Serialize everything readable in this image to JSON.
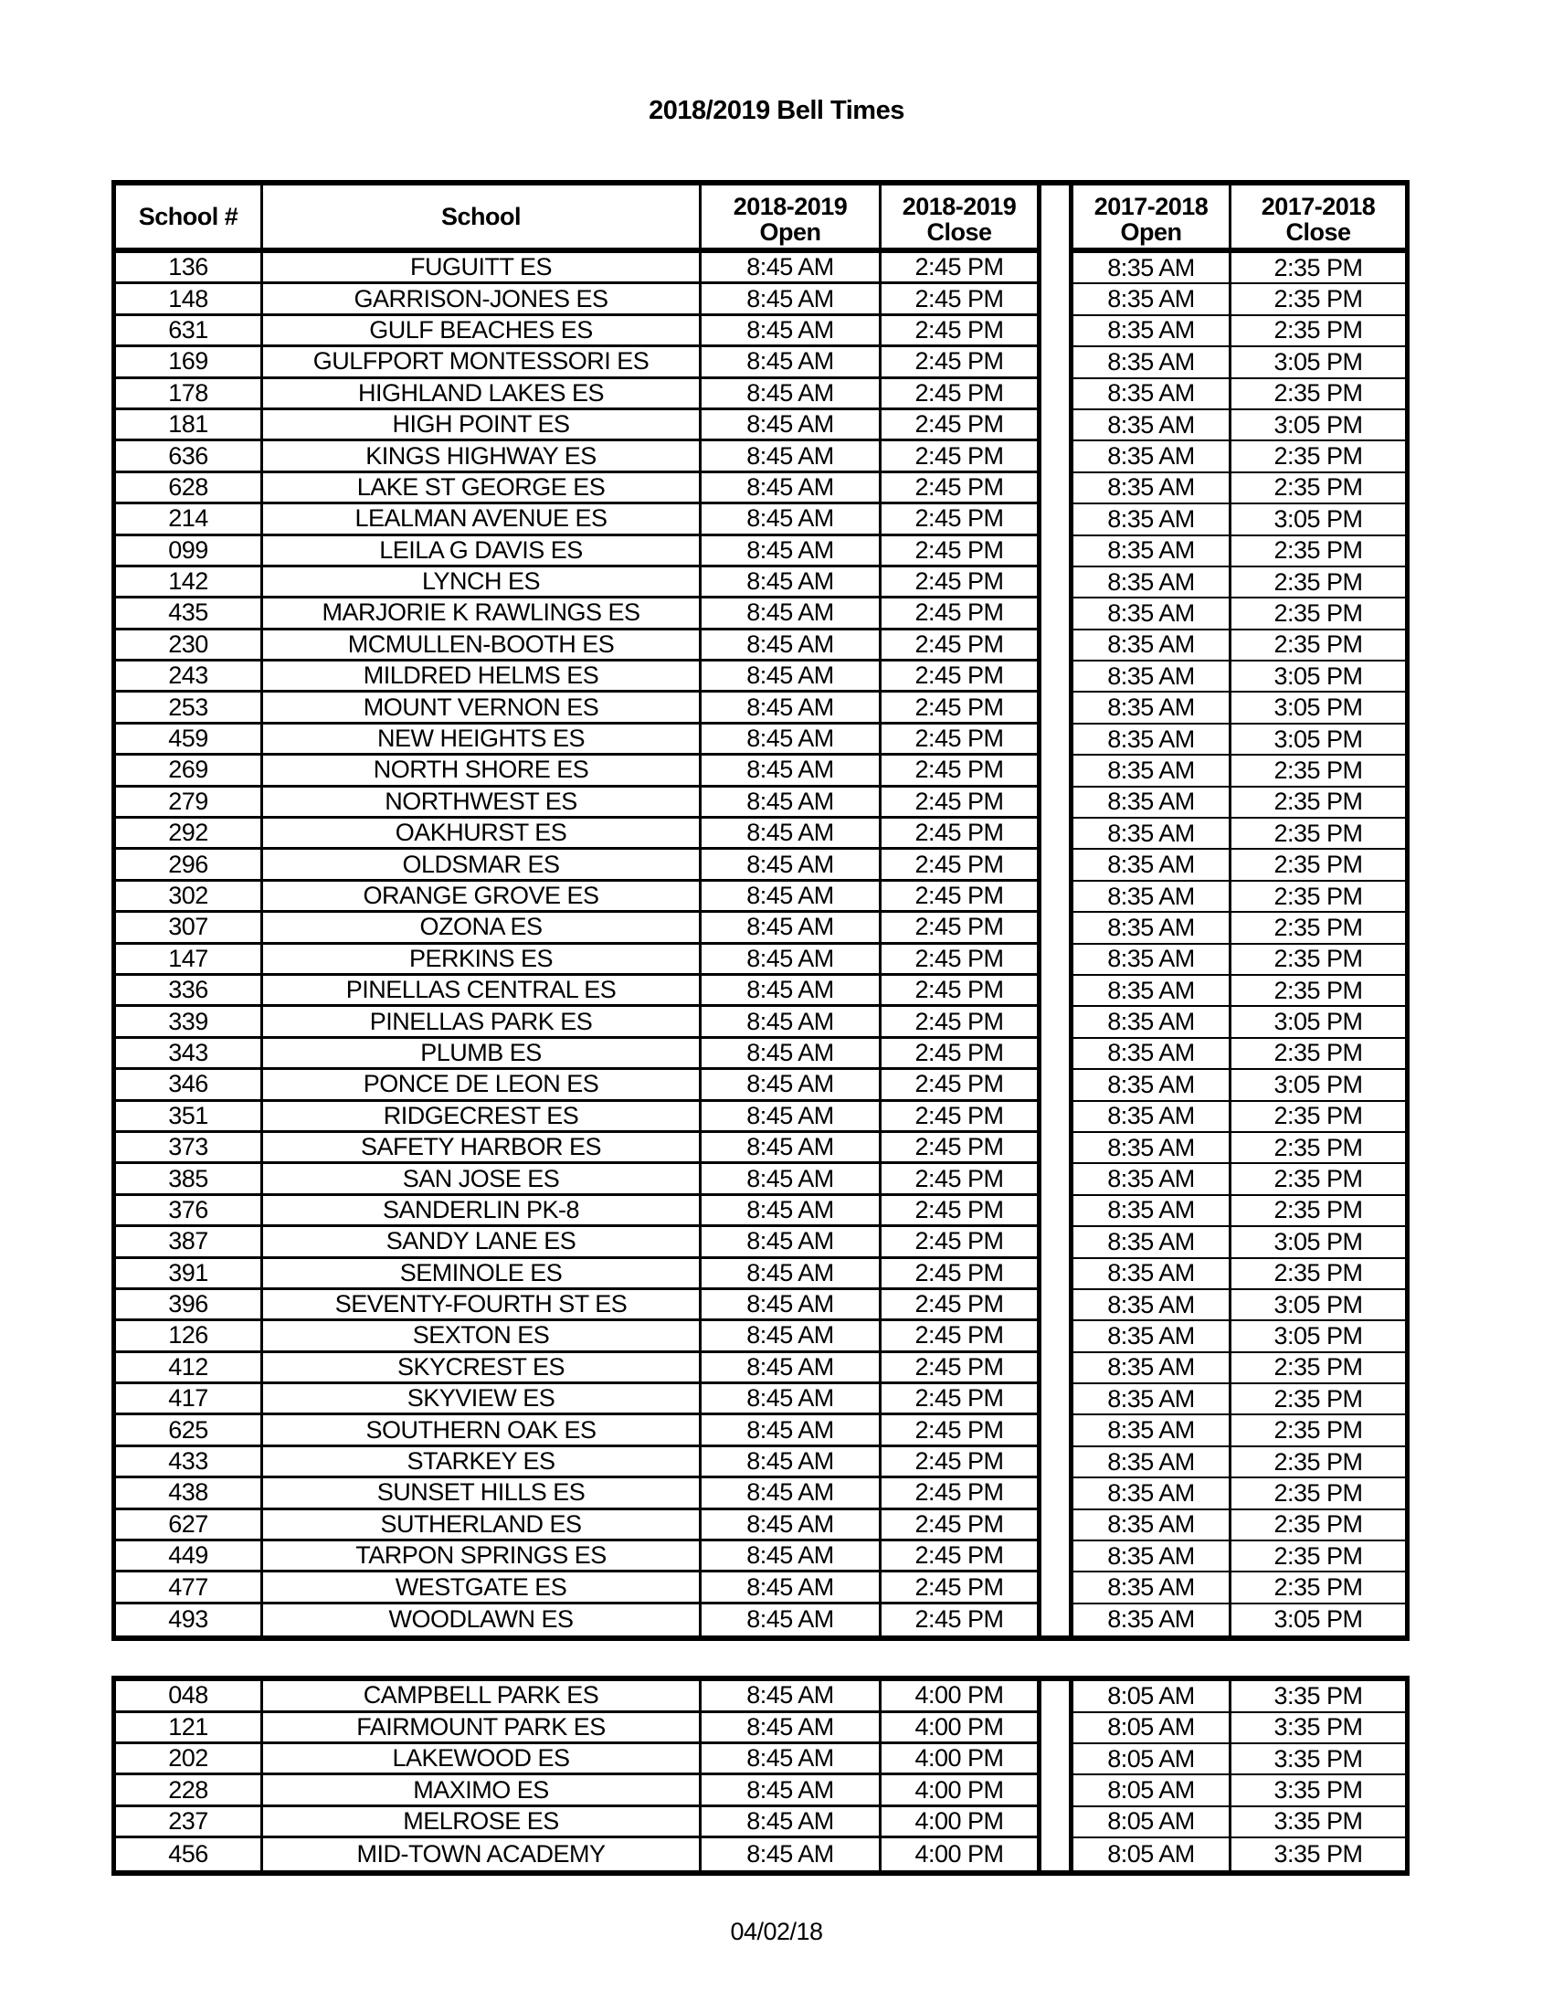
{
  "title": "2018/2019 Bell Times",
  "footer_date": "04/02/18",
  "table_header": {
    "school_number": "School #",
    "school": "School",
    "columns": [
      {
        "year": "2018-2019",
        "label": "Open"
      },
      {
        "year": "2018-2019",
        "label": "Close"
      },
      {
        "year": "2017-2018",
        "label": "Open"
      },
      {
        "year": "2017-2018",
        "label": "Close"
      }
    ]
  },
  "tables": [
    {
      "rows": [
        [
          "136",
          "FUGUITT ES",
          "8:45 AM",
          "2:45 PM",
          "8:35 AM",
          "2:35 PM"
        ],
        [
          "148",
          "GARRISON-JONES ES",
          "8:45 AM",
          "2:45 PM",
          "8:35 AM",
          "2:35 PM"
        ],
        [
          "631",
          "GULF BEACHES ES",
          "8:45 AM",
          "2:45 PM",
          "8:35 AM",
          "2:35 PM"
        ],
        [
          "169",
          "GULFPORT MONTESSORI ES",
          "8:45 AM",
          "2:45 PM",
          "8:35 AM",
          "3:05 PM"
        ],
        [
          "178",
          "HIGHLAND LAKES ES",
          "8:45 AM",
          "2:45 PM",
          "8:35 AM",
          "2:35 PM"
        ],
        [
          "181",
          "HIGH POINT ES",
          "8:45 AM",
          "2:45 PM",
          "8:35 AM",
          "3:05 PM"
        ],
        [
          "636",
          "KINGS HIGHWAY ES",
          "8:45 AM",
          "2:45 PM",
          "8:35 AM",
          "2:35 PM"
        ],
        [
          "628",
          "LAKE ST GEORGE ES",
          "8:45 AM",
          "2:45 PM",
          "8:35 AM",
          "2:35 PM"
        ],
        [
          "214",
          "LEALMAN AVENUE ES",
          "8:45 AM",
          "2:45 PM",
          "8:35 AM",
          "3:05 PM"
        ],
        [
          "099",
          "LEILA G DAVIS ES",
          "8:45 AM",
          "2:45 PM",
          "8:35 AM",
          "2:35 PM"
        ],
        [
          "142",
          "LYNCH ES",
          "8:45 AM",
          "2:45 PM",
          "8:35 AM",
          "2:35 PM"
        ],
        [
          "435",
          "MARJORIE K RAWLINGS ES",
          "8:45 AM",
          "2:45 PM",
          "8:35 AM",
          "2:35 PM"
        ],
        [
          "230",
          "MCMULLEN-BOOTH ES",
          "8:45 AM",
          "2:45 PM",
          "8:35 AM",
          "2:35 PM"
        ],
        [
          "243",
          "MILDRED HELMS ES",
          "8:45 AM",
          "2:45 PM",
          "8:35 AM",
          "3:05 PM"
        ],
        [
          "253",
          "MOUNT VERNON ES",
          "8:45 AM",
          "2:45 PM",
          "8:35 AM",
          "3:05 PM"
        ],
        [
          "459",
          "NEW HEIGHTS ES",
          "8:45 AM",
          "2:45 PM",
          "8:35 AM",
          "3:05 PM"
        ],
        [
          "269",
          "NORTH SHORE ES",
          "8:45 AM",
          "2:45 PM",
          "8:35 AM",
          "2:35 PM"
        ],
        [
          "279",
          "NORTHWEST ES",
          "8:45 AM",
          "2:45 PM",
          "8:35 AM",
          "2:35 PM"
        ],
        [
          "292",
          "OAKHURST ES",
          "8:45 AM",
          "2:45 PM",
          "8:35 AM",
          "2:35 PM"
        ],
        [
          "296",
          "OLDSMAR ES",
          "8:45 AM",
          "2:45 PM",
          "8:35 AM",
          "2:35 PM"
        ],
        [
          "302",
          "ORANGE GROVE ES",
          "8:45 AM",
          "2:45 PM",
          "8:35 AM",
          "2:35 PM"
        ],
        [
          "307",
          "OZONA ES",
          "8:45 AM",
          "2:45 PM",
          "8:35 AM",
          "2:35 PM"
        ],
        [
          "147",
          "PERKINS ES",
          "8:45 AM",
          "2:45 PM",
          "8:35 AM",
          "2:35 PM"
        ],
        [
          "336",
          "PINELLAS CENTRAL ES",
          "8:45 AM",
          "2:45 PM",
          "8:35 AM",
          "2:35 PM"
        ],
        [
          "339",
          "PINELLAS PARK ES",
          "8:45 AM",
          "2:45 PM",
          "8:35 AM",
          "3:05 PM"
        ],
        [
          "343",
          "PLUMB ES",
          "8:45 AM",
          "2:45 PM",
          "8:35 AM",
          "2:35 PM"
        ],
        [
          "346",
          "PONCE DE LEON ES",
          "8:45 AM",
          "2:45 PM",
          "8:35 AM",
          "3:05 PM"
        ],
        [
          "351",
          "RIDGECREST ES",
          "8:45 AM",
          "2:45 PM",
          "8:35 AM",
          "2:35 PM"
        ],
        [
          "373",
          "SAFETY HARBOR ES",
          "8:45 AM",
          "2:45 PM",
          "8:35 AM",
          "2:35 PM"
        ],
        [
          "385",
          "SAN JOSE ES",
          "8:45 AM",
          "2:45 PM",
          "8:35 AM",
          "2:35 PM"
        ],
        [
          "376",
          "SANDERLIN PK-8",
          "8:45 AM",
          "2:45 PM",
          "8:35 AM",
          "2:35 PM"
        ],
        [
          "387",
          "SANDY LANE ES",
          "8:45 AM",
          "2:45 PM",
          "8:35 AM",
          "3:05 PM"
        ],
        [
          "391",
          "SEMINOLE ES",
          "8:45 AM",
          "2:45 PM",
          "8:35 AM",
          "2:35 PM"
        ],
        [
          "396",
          "SEVENTY-FOURTH ST ES",
          "8:45 AM",
          "2:45 PM",
          "8:35 AM",
          "3:05 PM"
        ],
        [
          "126",
          "SEXTON ES",
          "8:45 AM",
          "2:45 PM",
          "8:35 AM",
          "3:05 PM"
        ],
        [
          "412",
          "SKYCREST ES",
          "8:45 AM",
          "2:45 PM",
          "8:35 AM",
          "2:35 PM"
        ],
        [
          "417",
          "SKYVIEW ES",
          "8:45 AM",
          "2:45 PM",
          "8:35 AM",
          "2:35 PM"
        ],
        [
          "625",
          "SOUTHERN OAK ES",
          "8:45 AM",
          "2:45 PM",
          "8:35 AM",
          "2:35 PM"
        ],
        [
          "433",
          "STARKEY ES",
          "8:45 AM",
          "2:45 PM",
          "8:35 AM",
          "2:35 PM"
        ],
        [
          "438",
          "SUNSET HILLS ES",
          "8:45 AM",
          "2:45 PM",
          "8:35 AM",
          "2:35 PM"
        ],
        [
          "627",
          "SUTHERLAND ES",
          "8:45 AM",
          "2:45 PM",
          "8:35 AM",
          "2:35 PM"
        ],
        [
          "449",
          "TARPON SPRINGS ES",
          "8:45 AM",
          "2:45 PM",
          "8:35 AM",
          "2:35 PM"
        ],
        [
          "477",
          "WESTGATE ES",
          "8:45 AM",
          "2:45 PM",
          "8:35 AM",
          "2:35 PM"
        ],
        [
          "493",
          "WOODLAWN ES",
          "8:45 AM",
          "2:45 PM",
          "8:35 AM",
          "3:05 PM"
        ]
      ]
    },
    {
      "rows": [
        [
          "048",
          "CAMPBELL PARK ES",
          "8:45 AM",
          "4:00 PM",
          "8:05 AM",
          "3:35 PM"
        ],
        [
          "121",
          "FAIRMOUNT PARK ES",
          "8:45 AM",
          "4:00 PM",
          "8:05 AM",
          "3:35 PM"
        ],
        [
          "202",
          "LAKEWOOD ES",
          "8:45 AM",
          "4:00 PM",
          "8:05 AM",
          "3:35 PM"
        ],
        [
          "228",
          "MAXIMO ES",
          "8:45 AM",
          "4:00 PM",
          "8:05 AM",
          "3:35 PM"
        ],
        [
          "237",
          "MELROSE ES",
          "8:45 AM",
          "4:00 PM",
          "8:05 AM",
          "3:35 PM"
        ],
        [
          "456",
          "MID-TOWN ACADEMY",
          "8:45 AM",
          "4:00 PM",
          "8:05 AM",
          "3:35 PM"
        ]
      ]
    }
  ]
}
